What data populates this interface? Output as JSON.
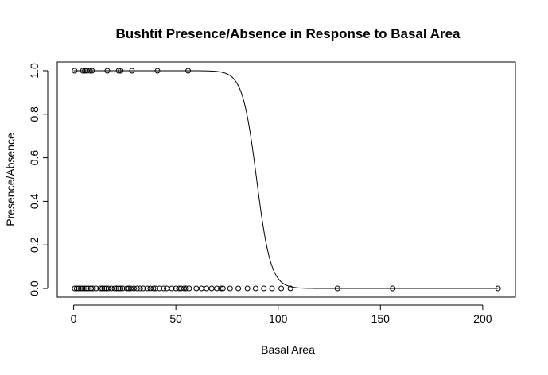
{
  "chart_data": {
    "type": "scatter",
    "title": "Bushtit Presence/Absence in Response to Basal Area",
    "xlabel": "Basal Area",
    "ylabel": "Presence/Absence",
    "xlim": [
      -8,
      216
    ],
    "ylim": [
      -0.04,
      1.04
    ],
    "x_ticks": [
      0,
      50,
      100,
      150,
      200
    ],
    "x_tick_labels": [
      "0",
      "50",
      "100",
      "150",
      "200"
    ],
    "y_ticks": [
      0.0,
      0.2,
      0.4,
      0.6,
      0.8,
      1.0
    ],
    "y_tick_labels": [
      "0.0",
      "0.2",
      "0.4",
      "0.6",
      "0.8",
      "1.0"
    ],
    "grid": false,
    "legend": "none",
    "series": [
      {
        "type": "scatter",
        "marker": "open-circle",
        "x_present": [
          0.5,
          4.5,
          5.5,
          6.5,
          8,
          9,
          16.5,
          22,
          23,
          28.5,
          41,
          56
        ],
        "x_absent": [
          0.5,
          1.5,
          2.5,
          3.5,
          4.5,
          5.5,
          6.5,
          7.5,
          8.5,
          9.5,
          11,
          13,
          14,
          15,
          16,
          17,
          18.5,
          20,
          21,
          22,
          23,
          24,
          26,
          27,
          28,
          29.5,
          31,
          32.5,
          34,
          36,
          37.5,
          39,
          40,
          42,
          44,
          45.5,
          48,
          50,
          51.5,
          52.5,
          54,
          55,
          56.5,
          60,
          62.5,
          65,
          67.5,
          70,
          72,
          73,
          76.5,
          80.5,
          85,
          89,
          93,
          97,
          101.5,
          106,
          129,
          156,
          207.5
        ]
      },
      {
        "type": "line",
        "model": "logistic",
        "midpoint": 89.5,
        "slope": 0.29,
        "x_range": [
          0,
          207.5
        ]
      }
    ]
  }
}
